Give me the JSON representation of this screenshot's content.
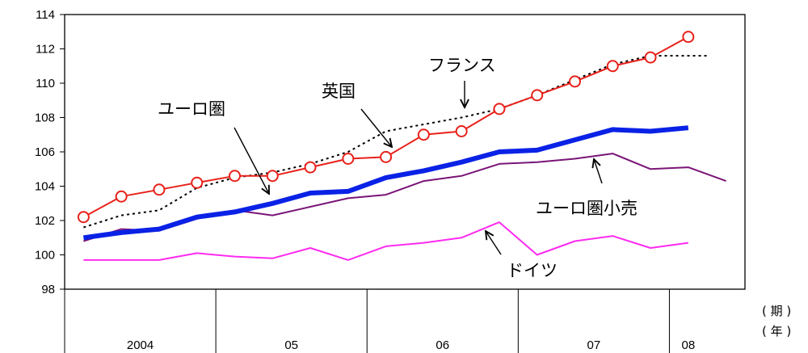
{
  "chart_data": {
    "type": "line",
    "xlabel": "（期）（年）",
    "unit_period": "( 期 )",
    "unit_year": "( 年 )",
    "year_labels": [
      "2004",
      "05",
      "06",
      "07",
      "08"
    ],
    "year_quarters": [
      4,
      4,
      4,
      4,
      1
    ],
    "quarters": [
      "2004Q1",
      "2004Q2",
      "2004Q3",
      "2004Q4",
      "2005Q1",
      "2005Q2",
      "2005Q3",
      "2005Q4",
      "2006Q1",
      "2006Q2",
      "2006Q3",
      "2006Q4",
      "2007Q1",
      "2007Q2",
      "2007Q3",
      "2007Q4",
      "2008Q1"
    ],
    "ylim": [
      98,
      114
    ],
    "yticks": [
      98,
      100,
      102,
      104,
      106,
      108,
      110,
      112,
      114
    ],
    "grid": false,
    "series": [
      {
        "name": "英国",
        "color": "#e8211a",
        "style": "solid-markers",
        "x": [
          1,
          2,
          3,
          4,
          5,
          6,
          7,
          8,
          9,
          10,
          11,
          12,
          13,
          14,
          15,
          16,
          17
        ],
        "values": [
          102.2,
          103.4,
          103.8,
          104.2,
          104.6,
          104.6,
          105.1,
          105.6,
          105.7,
          107.0,
          107.2,
          108.5,
          109.3,
          110.1,
          111.0,
          111.5,
          112.7
        ]
      },
      {
        "name": "フランス",
        "color": "#000000",
        "style": "dotted",
        "x": [
          1,
          2,
          3,
          4,
          5,
          6,
          7,
          8,
          9,
          10,
          11,
          12,
          13,
          14,
          15,
          16,
          17,
          17.5
        ],
        "values": [
          101.6,
          102.3,
          102.6,
          103.9,
          104.5,
          104.8,
          105.3,
          106.0,
          107.2,
          107.6,
          108.0,
          108.5,
          109.3,
          110.2,
          111.1,
          111.6,
          111.6,
          111.6
        ]
      },
      {
        "name": "ユーロ圏",
        "color": "#0a22e6",
        "style": "thick",
        "x": [
          1,
          2,
          3,
          4,
          5,
          6,
          7,
          8,
          9,
          10,
          11,
          12,
          13,
          14,
          15,
          16,
          17
        ],
        "values": [
          101.0,
          101.3,
          101.5,
          102.2,
          102.5,
          103.0,
          103.6,
          103.7,
          104.5,
          104.9,
          105.4,
          106.0,
          106.1,
          106.7,
          107.3,
          107.2,
          107.4
        ]
      },
      {
        "name": "ユーロ圏小売",
        "color": "#7a1577",
        "style": "solid",
        "x": [
          1,
          2,
          3,
          4,
          5,
          6,
          7,
          8,
          9,
          10,
          11,
          12,
          13,
          14,
          15,
          16,
          17,
          18
        ],
        "values": [
          100.8,
          101.5,
          101.4,
          102.1,
          102.6,
          102.3,
          102.8,
          103.3,
          103.5,
          104.3,
          104.6,
          105.3,
          105.4,
          105.6,
          105.9,
          105.0,
          105.1,
          104.3
        ]
      },
      {
        "name": "ドイツ",
        "color": "#ff2bf0",
        "style": "solid",
        "x": [
          1,
          2,
          3,
          4,
          5,
          6,
          7,
          8,
          9,
          10,
          11,
          12,
          13,
          14,
          15,
          16,
          17
        ],
        "values": [
          99.7,
          99.7,
          99.7,
          100.1,
          99.9,
          99.8,
          100.4,
          99.7,
          100.5,
          100.7,
          101.0,
          101.9,
          100.0,
          100.8,
          101.1,
          100.4,
          100.7
        ]
      }
    ],
    "annotations": [
      {
        "text": "フランス",
        "series": "フランス"
      },
      {
        "text": "英国",
        "series": "英国"
      },
      {
        "text": "ユーロ圏",
        "series": "ユーロ圏"
      },
      {
        "text": "ユーロ圏小売",
        "series": "ユーロ圏小売"
      },
      {
        "text": "ドイツ",
        "series": "ドイツ"
      }
    ]
  }
}
